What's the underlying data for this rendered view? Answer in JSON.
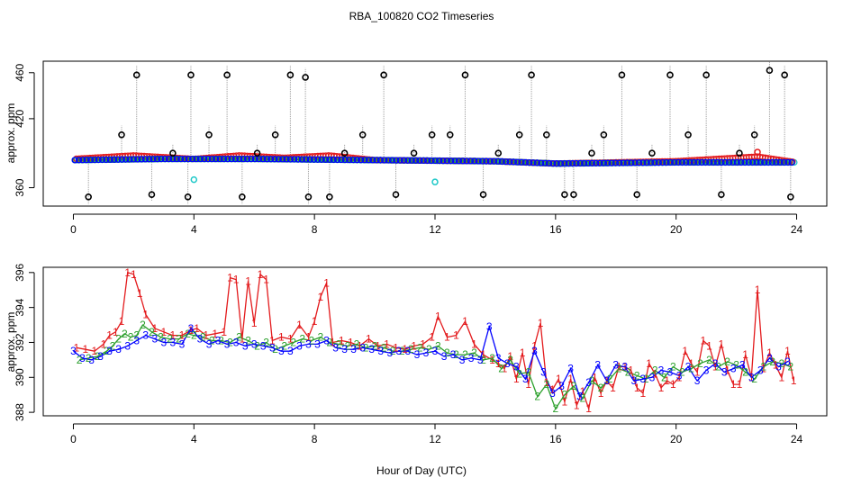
{
  "title": "RBA_100820  CO2 Timeseries",
  "xlabel": "Hour of Day (UTC)",
  "chart_data": [
    {
      "type": "scatter",
      "panel": "top",
      "ylabel": "approx. ppm",
      "xlim": [
        -1,
        25
      ],
      "ylim": [
        344,
        470
      ],
      "xticks": [
        0,
        4,
        8,
        12,
        16,
        20,
        24
      ],
      "yticks": [
        360,
        420,
        460
      ],
      "ytick_labels": [
        "360",
        "420",
        "460"
      ],
      "spike_x": [
        0.5,
        1.6,
        2.1,
        2.6,
        3.3,
        3.8,
        3.9,
        4.5,
        5.1,
        5.6,
        6.1,
        6.7,
        7.2,
        7.7,
        7.8,
        8.5,
        9.0,
        9.6,
        10.3,
        10.7,
        11.3,
        11.9,
        12.5,
        13.0,
        13.6,
        14.1,
        14.8,
        15.2,
        15.7,
        16.3,
        16.6,
        17.2,
        17.6,
        18.2,
        18.7,
        19.2,
        19.8,
        20.4,
        21.0,
        21.5,
        22.1,
        22.6,
        23.1,
        23.6,
        23.8
      ],
      "spike_y": [
        352,
        406,
        458,
        354,
        390,
        352,
        458,
        406,
        458,
        352,
        390,
        406,
        458,
        456,
        352,
        352,
        390,
        406,
        458,
        354,
        390,
        406,
        406,
        458,
        354,
        390,
        406,
        458,
        406,
        354,
        354,
        390,
        406,
        458,
        354,
        390,
        458,
        406,
        458,
        354,
        390,
        406,
        462,
        458,
        352
      ],
      "series": [
        {
          "name": "cyan baseline",
          "color": "#1ec8c8",
          "start": 0.05,
          "end": 23.95,
          "step": 0.07,
          "anchors": [
            [
              0,
              384
            ],
            [
              3,
              385
            ],
            [
              6,
              385
            ],
            [
              10,
              384
            ],
            [
              14,
              383
            ],
            [
              16,
              381
            ],
            [
              20,
              382
            ],
            [
              24,
              382
            ]
          ],
          "outliers": [
            [
              4.0,
              367
            ],
            [
              12.0,
              365
            ]
          ]
        },
        {
          "name": "red baseline",
          "color": "#e31a1c",
          "start": 0.1,
          "end": 23.9,
          "step": 0.09,
          "anchors": [
            [
              0,
              385
            ],
            [
              2,
              388
            ],
            [
              4,
              385
            ],
            [
              5.5,
              388
            ],
            [
              7,
              386
            ],
            [
              8.5,
              388
            ],
            [
              10,
              384
            ],
            [
              14,
              383
            ],
            [
              16,
              381
            ],
            [
              20,
              383
            ],
            [
              22.7,
              387
            ],
            [
              24,
              382
            ]
          ],
          "outliers": [
            [
              22.7,
              391
            ]
          ]
        },
        {
          "name": "green baseline",
          "color": "#2ca02c",
          "start": 0.07,
          "end": 23.93,
          "step": 0.11,
          "anchors": [
            [
              0,
              384
            ],
            [
              3,
              385
            ],
            [
              6,
              385
            ],
            [
              10,
              384
            ],
            [
              14,
              383
            ],
            [
              16,
              381
            ],
            [
              20,
              382
            ],
            [
              24,
              382
            ]
          ],
          "outliers": []
        },
        {
          "name": "blue baseline",
          "color": "#0000ff",
          "start": 0.05,
          "end": 23.95,
          "step": 0.13,
          "anchors": [
            [
              0,
              384
            ],
            [
              3,
              385
            ],
            [
              6,
              385
            ],
            [
              10,
              384
            ],
            [
              14,
              383
            ],
            [
              16,
              381
            ],
            [
              20,
              382
            ],
            [
              24,
              382
            ]
          ],
          "outliers": []
        }
      ]
    },
    {
      "type": "line",
      "panel": "bottom",
      "ylabel": "approx. ppm",
      "xlim": [
        -1,
        25
      ],
      "ylim": [
        387.8,
        396.3
      ],
      "xticks": [
        0,
        4,
        8,
        12,
        16,
        20,
        24
      ],
      "yticks": [
        388,
        390,
        392,
        394,
        396
      ],
      "series": [
        {
          "name": "1",
          "color": "#e31a1c",
          "x": [
            0.1,
            0.4,
            0.7,
            1.0,
            1.2,
            1.4,
            1.6,
            1.8,
            2.0,
            2.2,
            2.4,
            2.7,
            3.0,
            3.3,
            3.6,
            3.9,
            4.1,
            4.4,
            4.7,
            5.0,
            5.2,
            5.4,
            5.6,
            5.8,
            6.0,
            6.2,
            6.4,
            6.6,
            6.9,
            7.2,
            7.5,
            7.8,
            8.0,
            8.2,
            8.4,
            8.6,
            8.9,
            9.2,
            9.5,
            9.8,
            10.1,
            10.4,
            10.7,
            11.0,
            11.3,
            11.6,
            11.9,
            12.1,
            12.4,
            12.7,
            13.0,
            13.3,
            13.6,
            13.9,
            14.1,
            14.3,
            14.5,
            14.7,
            14.9,
            15.1,
            15.3,
            15.5,
            15.7,
            15.9,
            16.1,
            16.3,
            16.5,
            16.7,
            16.9,
            17.1,
            17.3,
            17.5,
            17.7,
            17.9,
            18.1,
            18.3,
            18.5,
            18.7,
            18.9,
            19.1,
            19.3,
            19.5,
            19.7,
            19.9,
            20.1,
            20.3,
            20.5,
            20.7,
            20.9,
            21.1,
            21.3,
            21.5,
            21.7,
            21.9,
            22.1,
            22.3,
            22.5,
            22.7,
            22.9,
            23.1,
            23.3,
            23.5,
            23.7,
            23.9
          ],
          "y": [
            391.7,
            391.6,
            391.5,
            391.9,
            392.4,
            392.6,
            393.2,
            396.0,
            395.9,
            394.8,
            393.6,
            392.8,
            392.6,
            392.4,
            392.4,
            392.7,
            392.8,
            392.4,
            392.5,
            392.6,
            395.7,
            395.6,
            392.2,
            395.5,
            393.1,
            395.9,
            395.6,
            392.1,
            392.3,
            392.2,
            393.0,
            392.3,
            393.2,
            394.6,
            395.4,
            392.0,
            392.1,
            392.0,
            391.8,
            392.2,
            391.8,
            391.9,
            391.7,
            391.6,
            391.8,
            391.9,
            392.3,
            393.5,
            392.3,
            392.4,
            393.2,
            391.9,
            391.3,
            391.0,
            390.8,
            390.5,
            391.2,
            389.9,
            391.4,
            389.6,
            391.8,
            393.1,
            389.7,
            389.3,
            389.9,
            388.6,
            389.9,
            388.4,
            389.2,
            388.2,
            390.0,
            389.1,
            389.8,
            389.4,
            390.6,
            390.6,
            390.4,
            389.4,
            389.1,
            390.8,
            390.2,
            389.4,
            389.8,
            389.6,
            390.0,
            391.5,
            390.8,
            390.3,
            392.1,
            391.8,
            390.6,
            391.9,
            390.4,
            389.6,
            389.6,
            391.3,
            390.0,
            395.0,
            390.5,
            391.4,
            390.7,
            390.0,
            391.5,
            389.8
          ]
        },
        {
          "name": "2",
          "color": "#2ca02c",
          "x": [
            0.2,
            0.5,
            0.8,
            1.1,
            1.3,
            1.5,
            1.7,
            1.9,
            2.1,
            2.3,
            2.6,
            2.9,
            3.2,
            3.5,
            3.8,
            4.0,
            4.3,
            4.6,
            4.9,
            5.2,
            5.5,
            5.8,
            6.1,
            6.4,
            6.7,
            7.0,
            7.3,
            7.6,
            7.9,
            8.2,
            8.5,
            8.8,
            9.1,
            9.4,
            9.7,
            10.0,
            10.3,
            10.6,
            10.9,
            11.2,
            11.5,
            11.8,
            12.1,
            12.4,
            12.7,
            13.0,
            13.3,
            13.6,
            13.9,
            14.2,
            14.5,
            14.8,
            15.1,
            15.4,
            15.7,
            16.0,
            16.3,
            16.6,
            16.9,
            17.2,
            17.5,
            17.8,
            18.1,
            18.4,
            18.7,
            19.0,
            19.3,
            19.6,
            19.9,
            20.2,
            20.5,
            20.8,
            21.1,
            21.4,
            21.7,
            22.0,
            22.3,
            22.6,
            22.9,
            23.2,
            23.5,
            23.8
          ],
          "y": [
            391.0,
            391.1,
            391.2,
            391.5,
            391.8,
            392.2,
            392.5,
            392.3,
            392.4,
            393.0,
            392.6,
            392.3,
            392.2,
            392.2,
            392.5,
            392.4,
            392.3,
            392.1,
            392.1,
            392.0,
            392.3,
            392.1,
            391.8,
            392.0,
            391.6,
            391.8,
            392.0,
            392.2,
            392.1,
            392.3,
            392.0,
            391.9,
            391.8,
            391.9,
            391.7,
            391.8,
            391.7,
            391.5,
            391.5,
            391.6,
            391.7,
            391.6,
            391.8,
            391.4,
            391.3,
            391.3,
            391.4,
            391.0,
            391.1,
            390.5,
            391.0,
            390.2,
            390.3,
            388.9,
            389.6,
            388.2,
            389.0,
            389.5,
            388.8,
            389.8,
            389.4,
            389.9,
            390.5,
            390.3,
            390.1,
            389.9,
            390.4,
            390.0,
            390.6,
            390.3,
            390.5,
            390.8,
            391.0,
            390.6,
            390.9,
            390.7,
            390.3,
            389.9,
            390.6,
            390.9,
            390.8,
            390.6
          ]
        },
        {
          "name": "3",
          "color": "#0000ff",
          "x": [
            0.0,
            0.3,
            0.6,
            0.9,
            1.2,
            1.5,
            1.8,
            2.1,
            2.4,
            2.7,
            3.0,
            3.3,
            3.6,
            3.9,
            4.2,
            4.5,
            4.8,
            5.1,
            5.4,
            5.7,
            6.0,
            6.3,
            6.6,
            6.9,
            7.2,
            7.5,
            7.8,
            8.1,
            8.4,
            8.7,
            9.0,
            9.3,
            9.6,
            9.9,
            10.2,
            10.5,
            10.8,
            11.1,
            11.4,
            11.7,
            12.0,
            12.3,
            12.6,
            12.9,
            13.2,
            13.5,
            13.8,
            14.1,
            14.4,
            14.7,
            15.0,
            15.3,
            15.6,
            15.9,
            16.2,
            16.5,
            16.8,
            17.1,
            17.4,
            17.7,
            18.0,
            18.3,
            18.6,
            18.9,
            19.2,
            19.5,
            19.8,
            20.1,
            20.4,
            20.7,
            21.0,
            21.3,
            21.6,
            21.9,
            22.2,
            22.5,
            22.8,
            23.1,
            23.4,
            23.7
          ],
          "y": [
            391.5,
            391.1,
            391.0,
            391.2,
            391.5,
            391.6,
            391.8,
            392.1,
            392.4,
            392.2,
            392.0,
            392.0,
            391.9,
            392.8,
            392.2,
            391.9,
            392.1,
            391.9,
            392.0,
            391.8,
            391.9,
            391.8,
            391.7,
            391.5,
            391.5,
            391.8,
            391.9,
            391.9,
            392.1,
            391.7,
            391.6,
            391.6,
            391.7,
            391.6,
            391.5,
            391.4,
            391.5,
            391.5,
            391.3,
            391.4,
            391.5,
            391.2,
            391.3,
            391.0,
            391.1,
            391.0,
            392.9,
            391.1,
            390.8,
            390.6,
            389.9,
            391.5,
            390.3,
            389.1,
            389.5,
            390.5,
            388.9,
            389.7,
            390.7,
            389.8,
            390.7,
            390.6,
            389.8,
            389.9,
            390.0,
            390.4,
            390.3,
            390.1,
            390.6,
            389.8,
            390.4,
            390.8,
            390.3,
            390.5,
            390.7,
            390.0,
            390.4,
            391.1,
            390.6,
            390.9
          ]
        }
      ]
    }
  ]
}
